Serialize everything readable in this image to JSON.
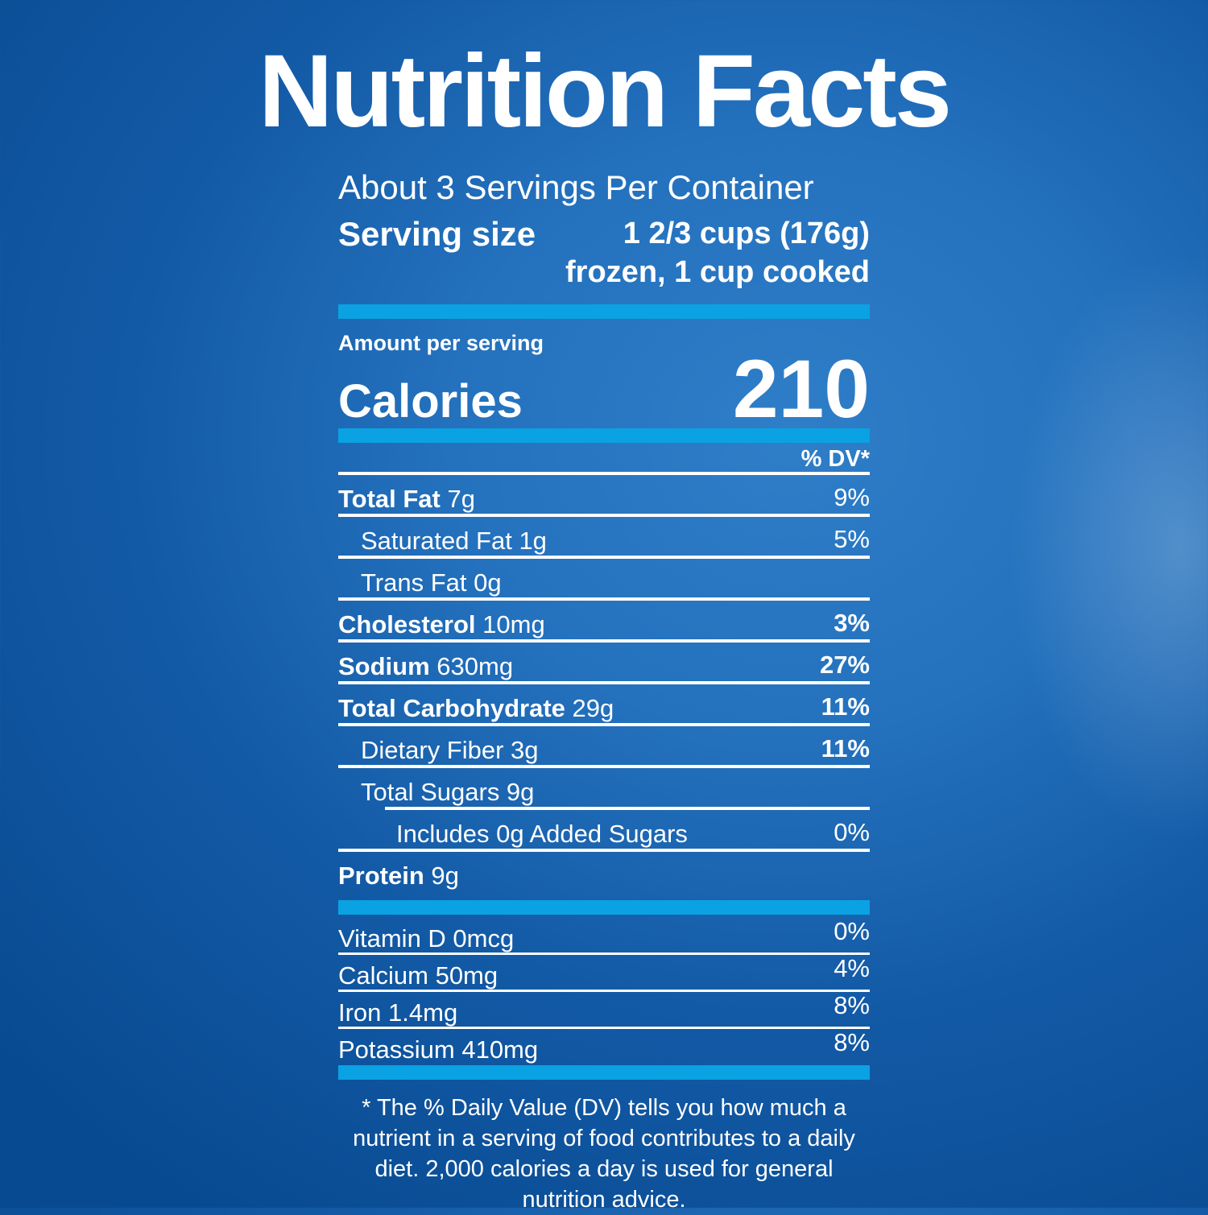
{
  "colors": {
    "accent_bar": "#0aa2e2",
    "text": "#ffffff",
    "background_dark": "#084a91",
    "background_light": "#2f7ec8"
  },
  "title": "Nutrition Facts",
  "header": {
    "servings_per_container": "About 3 Servings Per Container",
    "serving_size_label": "Serving size",
    "serving_size_value_line1": "1 2/3 cups (176g)",
    "serving_size_value_line2": "frozen, 1 cup cooked"
  },
  "calories": {
    "amount_label": "Amount per serving",
    "label": "Calories",
    "value": "210"
  },
  "dv_header": "% DV*",
  "nutrients": {
    "rows": [
      {
        "bold": "Total Fat",
        "rest": " 7g",
        "pct": "9%",
        "pct_bold": false,
        "indent": 0,
        "divider": "full"
      },
      {
        "bold": "",
        "rest": "Saturated Fat 1g",
        "pct": "5%",
        "pct_bold": false,
        "indent": 1,
        "divider": "full"
      },
      {
        "bold": "",
        "rest": "Trans Fat 0g",
        "pct": "",
        "pct_bold": false,
        "indent": 1,
        "divider": "full"
      },
      {
        "bold": "Cholesterol",
        "rest": " 10mg",
        "pct": "3%",
        "pct_bold": true,
        "indent": 0,
        "divider": "full"
      },
      {
        "bold": "Sodium",
        "rest": " 630mg",
        "pct": "27%",
        "pct_bold": true,
        "indent": 0,
        "divider": "full"
      },
      {
        "bold": "Total Carbohydrate",
        "rest": " 29g",
        "pct": "11%",
        "pct_bold": true,
        "indent": 0,
        "divider": "full"
      },
      {
        "bold": "",
        "rest": "Dietary Fiber 3g",
        "pct": "11%",
        "pct_bold": true,
        "indent": 1,
        "divider": "full"
      },
      {
        "bold": "",
        "rest": "Total Sugars 9g",
        "pct": "",
        "pct_bold": false,
        "indent": 1,
        "divider": "sub"
      },
      {
        "bold": "",
        "rest": "Includes 0g Added Sugars",
        "pct": "0%",
        "pct_bold": false,
        "indent": 2,
        "divider": "full"
      },
      {
        "bold": "Protein",
        "rest": " 9g",
        "pct": "",
        "pct_bold": false,
        "indent": 0,
        "divider": "none"
      }
    ]
  },
  "vitamins": {
    "rows": [
      {
        "label": "Vitamin D 0mcg",
        "pct": "0%",
        "divider": true
      },
      {
        "label": "Calcium 50mg",
        "pct": "4%",
        "divider": true
      },
      {
        "label": "Iron 1.4mg",
        "pct": "8%",
        "divider": true
      },
      {
        "label": "Potassium 410mg",
        "pct": "8%",
        "divider": false
      }
    ]
  },
  "footnote": "* The % Daily Value (DV) tells you how much a nutrient in a serving of food contributes to a daily diet. 2,000 calories a day is used for general nutrition advice."
}
